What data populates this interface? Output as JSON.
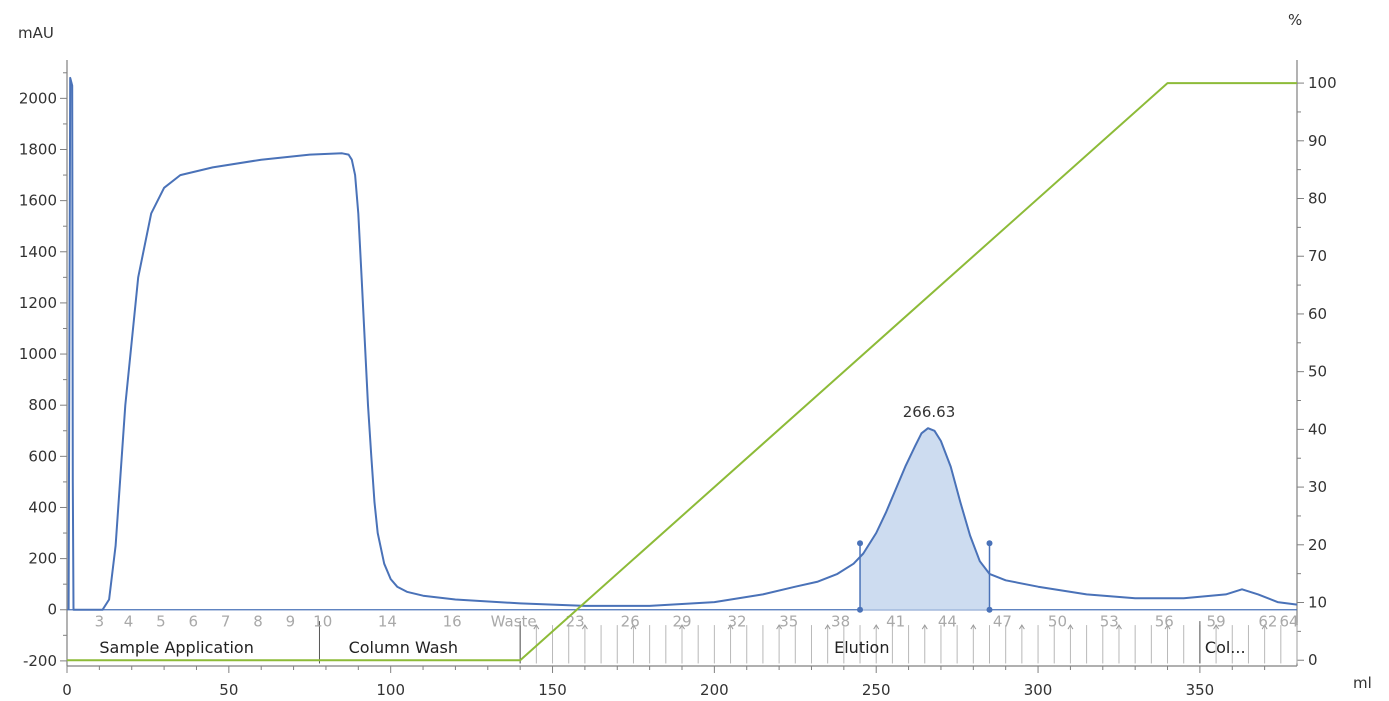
{
  "chart_data": {
    "type": "line",
    "ylabel": "mAU",
    "y2label": "%",
    "xlabel": "ml",
    "xlim": [
      0,
      380
    ],
    "ylim": [
      -220,
      2150
    ],
    "y2lim": [
      -1,
      104
    ],
    "xticks": [
      0,
      50,
      100,
      150,
      200,
      250,
      300,
      350
    ],
    "yticks": [
      -200,
      0,
      200,
      400,
      600,
      800,
      1000,
      1200,
      1400,
      1600,
      1800,
      2000
    ],
    "y2ticks": [
      0,
      10,
      20,
      30,
      40,
      50,
      60,
      70,
      80,
      90,
      100
    ],
    "grid": false,
    "series": [
      {
        "axis": "left",
        "color": "#4a72b8",
        "x": [
          0.5,
          1.0,
          1.6,
          1.8,
          2.0,
          11,
          13,
          15,
          18,
          22,
          26,
          30,
          35,
          45,
          60,
          75,
          85,
          87,
          88,
          89,
          90,
          91,
          92,
          93,
          94,
          95,
          96,
          98,
          100,
          102,
          105,
          110,
          120,
          140,
          160,
          180,
          200,
          215,
          225,
          232,
          238,
          243,
          246,
          250,
          253,
          256,
          259,
          262,
          264,
          266,
          268,
          270,
          273,
          276,
          279,
          282,
          285,
          290,
          300,
          315,
          330,
          345,
          358,
          363,
          368,
          374,
          380
        ],
        "y": [
          0,
          2080,
          2050,
          500,
          0,
          0,
          40,
          250,
          800,
          1300,
          1550,
          1650,
          1700,
          1730,
          1760,
          1780,
          1785,
          1780,
          1760,
          1700,
          1550,
          1300,
          1050,
          800,
          600,
          420,
          300,
          180,
          120,
          90,
          70,
          55,
          40,
          25,
          15,
          15,
          30,
          60,
          90,
          110,
          140,
          180,
          220,
          300,
          380,
          470,
          560,
          640,
          690,
          710,
          700,
          660,
          560,
          420,
          290,
          190,
          140,
          115,
          90,
          60,
          45,
          45,
          60,
          80,
          60,
          30,
          20
        ]
      },
      {
        "axis": "right",
        "color": "#8dbb38",
        "x": [
          0,
          140,
          340,
          380
        ],
        "y": [
          0,
          0,
          100,
          100
        ]
      }
    ],
    "peak": {
      "label": "266.63",
      "apex_x": 266,
      "apex_y": 710,
      "start_x": 245,
      "end_x": 285,
      "color": "#4a72b8",
      "fill": "#cddcf0"
    },
    "baseline_mAU": 0,
    "fractions": [
      {
        "label": "3",
        "x": 10
      },
      {
        "label": "4",
        "x": 19
      },
      {
        "label": "5",
        "x": 29
      },
      {
        "label": "6",
        "x": 39
      },
      {
        "label": "7",
        "x": 49
      },
      {
        "label": "8",
        "x": 59
      },
      {
        "label": "9",
        "x": 69
      },
      {
        "label": "10",
        "x": 79
      },
      {
        "label": "14",
        "x": 99
      },
      {
        "label": "16",
        "x": 119
      },
      {
        "label": "Waste",
        "x": 138
      },
      {
        "label": "23",
        "x": 157
      },
      {
        "label": "26",
        "x": 174
      },
      {
        "label": "29",
        "x": 190
      },
      {
        "label": "32",
        "x": 207
      },
      {
        "label": "35",
        "x": 223
      },
      {
        "label": "38",
        "x": 239
      },
      {
        "label": "41",
        "x": 256
      },
      {
        "label": "44",
        "x": 272
      },
      {
        "label": "47",
        "x": 289
      },
      {
        "label": "50",
        "x": 306
      },
      {
        "label": "53",
        "x": 322
      },
      {
        "label": "56",
        "x": 339
      },
      {
        "label": "59",
        "x": 355
      },
      {
        "label": "62",
        "x": 371
      },
      {
        "label": "64",
        "x": 386
      }
    ],
    "fraction_ticks": {
      "start": 140,
      "end": 380,
      "step": 5
    },
    "phases": [
      {
        "label": "Sample Application",
        "start": 0,
        "end": 78
      },
      {
        "label": "Column Wash",
        "start": 78,
        "end": 140
      },
      {
        "label": "Elution",
        "start": 140,
        "end": 350
      },
      {
        "label": "Col...",
        "start": 350,
        "end": 380
      }
    ],
    "colors": {
      "uv": "#4a72b8",
      "conc": "#8dbb38",
      "frac_text": "#a9a9a9",
      "axis": "#808080"
    }
  }
}
